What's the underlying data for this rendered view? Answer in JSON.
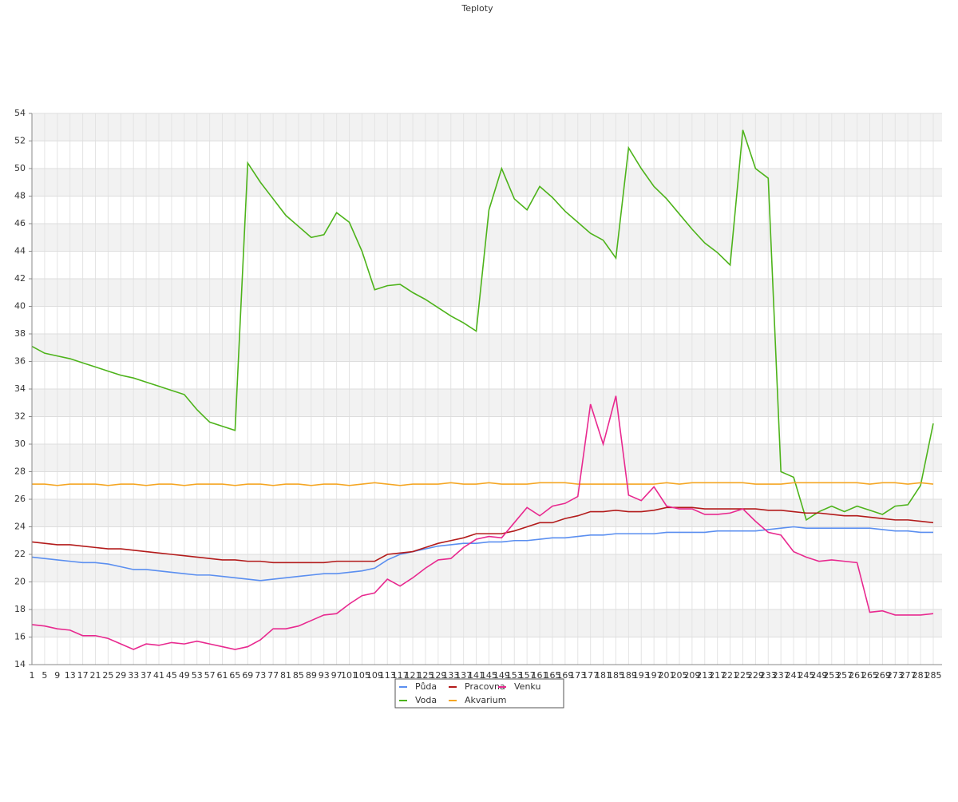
{
  "chart_data": {
    "type": "line",
    "title": "Teploty",
    "categories": [
      "1",
      "5",
      "9",
      "13",
      "17",
      "21",
      "25",
      "29",
      "33",
      "37",
      "41",
      "45",
      "49",
      "53",
      "57",
      "61",
      "65",
      "69",
      "73",
      "77",
      "81",
      "85",
      "89",
      "93",
      "97",
      "101",
      "105",
      "109",
      "113",
      "117",
      "121",
      "125",
      "129",
      "133",
      "137",
      "141",
      "145",
      "149",
      "153",
      "157",
      "161",
      "165",
      "169",
      "173",
      "177",
      "181",
      "185",
      "189",
      "193",
      "197",
      "201",
      "205",
      "209",
      "213",
      "217",
      "221",
      "225",
      "229",
      "233",
      "237",
      "241",
      "245",
      "249",
      "253",
      "257",
      "261",
      "265",
      "269",
      "273",
      "277",
      "281",
      "285"
    ],
    "series": [
      {
        "name": "Půda",
        "color": "#5b8ff0",
        "values": [
          21.8,
          21.7,
          21.6,
          21.5,
          21.4,
          21.4,
          21.3,
          21.1,
          20.9,
          20.9,
          20.8,
          20.7,
          20.6,
          20.5,
          20.5,
          20.4,
          20.3,
          20.2,
          20.1,
          20.2,
          20.3,
          20.4,
          20.5,
          20.6,
          20.6,
          20.7,
          20.8,
          21.0,
          21.6,
          22.0,
          22.2,
          22.4,
          22.6,
          22.7,
          22.8,
          22.8,
          22.9,
          22.9,
          23.0,
          23.0,
          23.1,
          23.2,
          23.2,
          23.3,
          23.4,
          23.4,
          23.5,
          23.5,
          23.5,
          23.5,
          23.6,
          23.6,
          23.6,
          23.6,
          23.7,
          23.7,
          23.7,
          23.7,
          23.8,
          23.9,
          24.0,
          23.9,
          23.9,
          23.9,
          23.9,
          23.9,
          23.9,
          23.8,
          23.7,
          23.7,
          23.6,
          23.6
        ]
      },
      {
        "name": "Voda",
        "color": "#4db31a",
        "values": [
          37.1,
          36.6,
          36.4,
          36.2,
          35.9,
          35.6,
          35.3,
          35.0,
          34.8,
          34.5,
          34.2,
          33.9,
          33.6,
          32.5,
          31.6,
          31.3,
          31.0,
          50.4,
          49.0,
          47.8,
          46.6,
          45.8,
          45.0,
          45.2,
          46.8,
          46.1,
          44.0,
          41.2,
          41.5,
          41.6,
          41.0,
          40.5,
          39.9,
          39.3,
          38.8,
          38.2,
          47.0,
          50.0,
          47.8,
          47.0,
          48.7,
          47.9,
          46.9,
          46.1,
          45.3,
          44.8,
          43.5,
          51.5,
          50.0,
          48.7,
          47.8,
          46.7,
          45.6,
          44.6,
          43.9,
          43.0,
          52.8,
          50.0,
          49.3,
          28.0,
          27.6,
          24.5,
          25.1,
          25.5,
          25.1,
          25.5,
          25.2,
          24.9,
          25.5,
          25.6,
          27.0,
          31.5
        ]
      },
      {
        "name": "Pracovna",
        "color": "#b31b1b",
        "values": [
          22.9,
          22.8,
          22.7,
          22.7,
          22.6,
          22.5,
          22.4,
          22.4,
          22.3,
          22.2,
          22.1,
          22.0,
          21.9,
          21.8,
          21.7,
          21.6,
          21.6,
          21.5,
          21.5,
          21.4,
          21.4,
          21.4,
          21.4,
          21.4,
          21.5,
          21.5,
          21.5,
          21.5,
          22.0,
          22.1,
          22.2,
          22.5,
          22.8,
          23.0,
          23.2,
          23.5,
          23.5,
          23.5,
          23.7,
          24.0,
          24.3,
          24.3,
          24.6,
          24.8,
          25.1,
          25.1,
          25.2,
          25.1,
          25.1,
          25.2,
          25.4,
          25.4,
          25.4,
          25.3,
          25.3,
          25.3,
          25.3,
          25.3,
          25.2,
          25.2,
          25.1,
          25.0,
          25.0,
          24.9,
          24.8,
          24.8,
          24.7,
          24.6,
          24.5,
          24.5,
          24.4,
          24.3
        ]
      },
      {
        "name": "Akvarium",
        "color": "#f5a623",
        "values": [
          27.1,
          27.1,
          27.0,
          27.1,
          27.1,
          27.1,
          27.0,
          27.1,
          27.1,
          27.0,
          27.1,
          27.1,
          27.0,
          27.1,
          27.1,
          27.1,
          27.0,
          27.1,
          27.1,
          27.0,
          27.1,
          27.1,
          27.0,
          27.1,
          27.1,
          27.0,
          27.1,
          27.2,
          27.1,
          27.0,
          27.1,
          27.1,
          27.1,
          27.2,
          27.1,
          27.1,
          27.2,
          27.1,
          27.1,
          27.1,
          27.2,
          27.2,
          27.2,
          27.1,
          27.1,
          27.1,
          27.1,
          27.1,
          27.1,
          27.1,
          27.2,
          27.1,
          27.2,
          27.2,
          27.2,
          27.2,
          27.2,
          27.1,
          27.1,
          27.1,
          27.2,
          27.2,
          27.2,
          27.2,
          27.2,
          27.2,
          27.1,
          27.2,
          27.2,
          27.1,
          27.2,
          27.1
        ]
      },
      {
        "name": "Venku",
        "color": "#e8298f",
        "values": [
          16.9,
          16.8,
          16.6,
          16.5,
          16.1,
          16.1,
          15.9,
          15.5,
          15.1,
          15.5,
          15.4,
          15.6,
          15.5,
          15.7,
          15.5,
          15.3,
          15.1,
          15.3,
          15.8,
          16.6,
          16.6,
          16.8,
          17.2,
          17.6,
          17.7,
          18.4,
          19.0,
          19.2,
          20.2,
          19.7,
          20.3,
          21.0,
          21.6,
          21.7,
          22.5,
          23.1,
          23.3,
          23.2,
          24.3,
          25.4,
          24.8,
          25.5,
          25.7,
          26.2,
          32.9,
          30.0,
          33.5,
          26.3,
          25.9,
          26.9,
          25.5,
          25.3,
          25.3,
          24.9,
          24.9,
          25.0,
          25.3,
          24.4,
          23.6,
          23.4,
          22.2,
          21.8,
          21.5,
          21.6,
          21.5,
          21.4,
          17.8,
          17.9,
          17.6,
          17.6,
          17.6,
          17.7
        ]
      }
    ],
    "ylim": [
      14,
      54
    ],
    "yticks": [
      14,
      16,
      18,
      20,
      22,
      24,
      26,
      28,
      30,
      32,
      34,
      36,
      38,
      40,
      42,
      44,
      46,
      48,
      50,
      52,
      54
    ],
    "grid": true
  }
}
